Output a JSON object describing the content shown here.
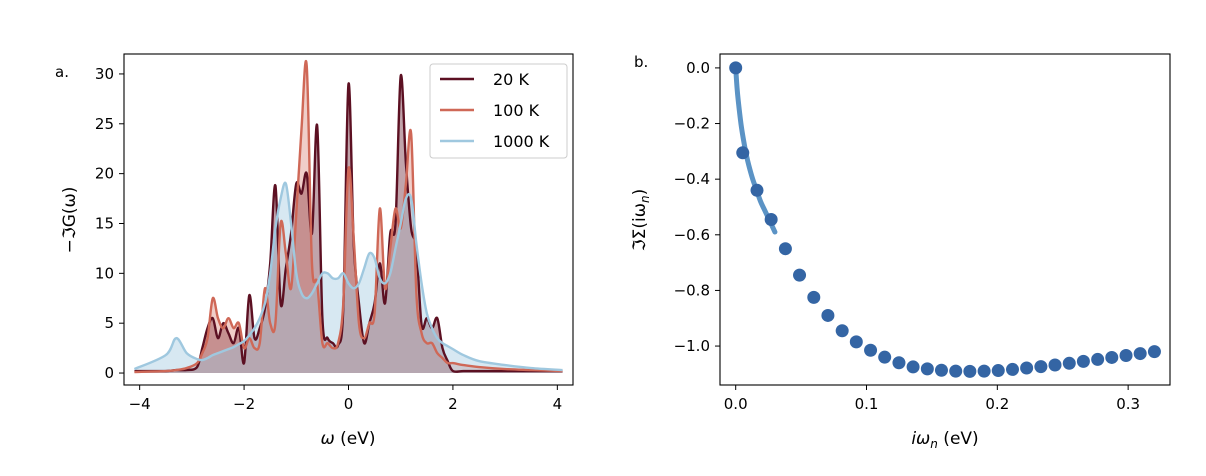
{
  "chart_data": [
    {
      "panel_label": "a.",
      "type": "line",
      "fill_under": true,
      "xlabel_main": "ω",
      "xlabel_unit": " (eV)",
      "ylabel": "−ℑG(ω)",
      "xlim": [
        -4.3,
        4.3
      ],
      "ylim": [
        -1.2,
        32
      ],
      "xticks": [
        -4,
        -2,
        0,
        2,
        4
      ],
      "xtick_labels": [
        "−4",
        "−2",
        "0",
        "2",
        "4"
      ],
      "yticks": [
        0,
        5,
        10,
        15,
        20,
        25,
        30
      ],
      "ytick_labels": [
        "0",
        "5",
        "10",
        "15",
        "20",
        "25",
        "30"
      ],
      "legend_position": "top-right",
      "x": [
        -4.1,
        -3.5,
        -3.3,
        -3.1,
        -2.9,
        -2.8,
        -2.7,
        -2.6,
        -2.5,
        -2.4,
        -2.3,
        -2.2,
        -2.1,
        -2.0,
        -1.9,
        -1.8,
        -1.7,
        -1.6,
        -1.5,
        -1.4,
        -1.3,
        -1.2,
        -1.1,
        -1.0,
        -0.9,
        -0.8,
        -0.7,
        -0.6,
        -0.5,
        -0.4,
        -0.3,
        -0.2,
        -0.1,
        0.0,
        0.1,
        0.2,
        0.3,
        0.4,
        0.5,
        0.6,
        0.7,
        0.8,
        0.9,
        1.0,
        1.1,
        1.2,
        1.3,
        1.4,
        1.5,
        1.6,
        1.7,
        1.8,
        1.9,
        2.0,
        2.2,
        2.5,
        3.0,
        3.5,
        4.1
      ],
      "series": [
        {
          "name": "20 K",
          "color": "#5c1022",
          "values": [
            0.2,
            0.2,
            0.3,
            0.3,
            0.6,
            2.5,
            4.5,
            5.5,
            3.5,
            5.0,
            4.0,
            3.0,
            4.5,
            1.0,
            7.8,
            3.5,
            4.5,
            6.5,
            11.0,
            18.8,
            7.0,
            10.5,
            14.0,
            19.0,
            18.0,
            20.0,
            14.0,
            24.8,
            5.5,
            3.5,
            3.0,
            2.8,
            6.5,
            29.0,
            13.0,
            7.0,
            3.0,
            5.0,
            7.0,
            11.0,
            7.0,
            14.0,
            15.0,
            29.8,
            21.0,
            14.5,
            12.5,
            4.8,
            5.5,
            4.5,
            5.5,
            2.5,
            1.2,
            0.2,
            0.2,
            0.2,
            0.2,
            0.2,
            0.2
          ]
        },
        {
          "name": "100 K",
          "color": "#cf6857",
          "values": [
            0.1,
            0.2,
            0.3,
            0.5,
            1.0,
            2.0,
            3.5,
            7.5,
            5.5,
            4.5,
            5.5,
            4.5,
            5.0,
            2.5,
            3.5,
            2.5,
            3.0,
            8.5,
            5.0,
            5.0,
            15.0,
            12.0,
            8.5,
            16.0,
            24.5,
            30.8,
            11.0,
            9.0,
            3.0,
            3.0,
            2.5,
            3.0,
            7.0,
            20.5,
            13.5,
            5.0,
            3.5,
            5.0,
            6.0,
            16.5,
            8.5,
            12.5,
            16.5,
            14.5,
            19.0,
            24.0,
            8.0,
            4.0,
            3.0,
            3.0,
            2.0,
            1.5,
            1.0,
            1.0,
            0.8,
            0.6,
            0.4,
            0.3,
            0.2
          ]
        },
        {
          "name": "1000 K",
          "color": "#9fc8df",
          "values": [
            0.4,
            1.8,
            3.5,
            2.0,
            1.4,
            1.3,
            1.5,
            1.8,
            2.0,
            2.2,
            2.4,
            2.6,
            2.9,
            3.2,
            3.8,
            4.5,
            5.5,
            7.0,
            10.0,
            14.5,
            17.5,
            19.0,
            15.0,
            10.0,
            8.0,
            7.5,
            8.0,
            9.0,
            10.0,
            10.0,
            9.5,
            9.5,
            10.0,
            9.0,
            8.5,
            9.0,
            10.5,
            12.0,
            11.5,
            9.5,
            9.0,
            10.0,
            12.5,
            15.0,
            17.5,
            17.5,
            13.0,
            9.0,
            6.0,
            4.5,
            3.5,
            3.0,
            2.7,
            2.4,
            1.8,
            1.2,
            0.8,
            0.5,
            0.3
          ]
        }
      ]
    },
    {
      "panel_label": "b.",
      "type": "scatter",
      "xlabel_main": "iω",
      "xlabel_sub": "n",
      "xlabel_unit": " (eV)",
      "ylabel_main": "ℑΣ(iω",
      "ylabel_sub": "n",
      "ylabel_close": ")",
      "xlim": [
        -0.012,
        0.332
      ],
      "ylim": [
        -1.14,
        0.05
      ],
      "xticks": [
        0.0,
        0.1,
        0.2,
        0.3
      ],
      "xtick_labels": [
        "0.0",
        "0.1",
        "0.2",
        "0.3"
      ],
      "yticks": [
        0.0,
        -0.2,
        -0.4,
        -0.6,
        -0.8,
        -1.0
      ],
      "ytick_labels": [
        "0.0",
        "−0.2",
        "−0.4",
        "−0.6",
        "−0.8",
        "−1.0"
      ],
      "line": {
        "color": "#5b93c5",
        "x": [
          0.0,
          0.001,
          0.002,
          0.004,
          0.006,
          0.008,
          0.01,
          0.013,
          0.016,
          0.019,
          0.022,
          0.025,
          0.028,
          0.03
        ],
        "y": [
          0.0,
          -0.07,
          -0.12,
          -0.2,
          -0.26,
          -0.31,
          -0.35,
          -0.4,
          -0.44,
          -0.48,
          -0.51,
          -0.54,
          -0.57,
          -0.59
        ]
      },
      "points": {
        "color": "#3465a4",
        "x": [
          0.0,
          0.0054,
          0.0163,
          0.0271,
          0.038,
          0.0488,
          0.0597,
          0.0705,
          0.0814,
          0.0922,
          0.1031,
          0.1139,
          0.1248,
          0.1356,
          0.1465,
          0.1573,
          0.1682,
          0.179,
          0.1899,
          0.2007,
          0.2116,
          0.2224,
          0.2333,
          0.2441,
          0.255,
          0.2658,
          0.2767,
          0.2875,
          0.2984,
          0.3092,
          0.3201
        ],
        "y": [
          0.0,
          -0.305,
          -0.44,
          -0.545,
          -0.65,
          -0.745,
          -0.825,
          -0.89,
          -0.945,
          -0.985,
          -1.015,
          -1.04,
          -1.06,
          -1.075,
          -1.082,
          -1.087,
          -1.09,
          -1.091,
          -1.09,
          -1.088,
          -1.084,
          -1.079,
          -1.074,
          -1.068,
          -1.062,
          -1.055,
          -1.048,
          -1.041,
          -1.034,
          -1.027,
          -1.02
        ]
      }
    }
  ]
}
